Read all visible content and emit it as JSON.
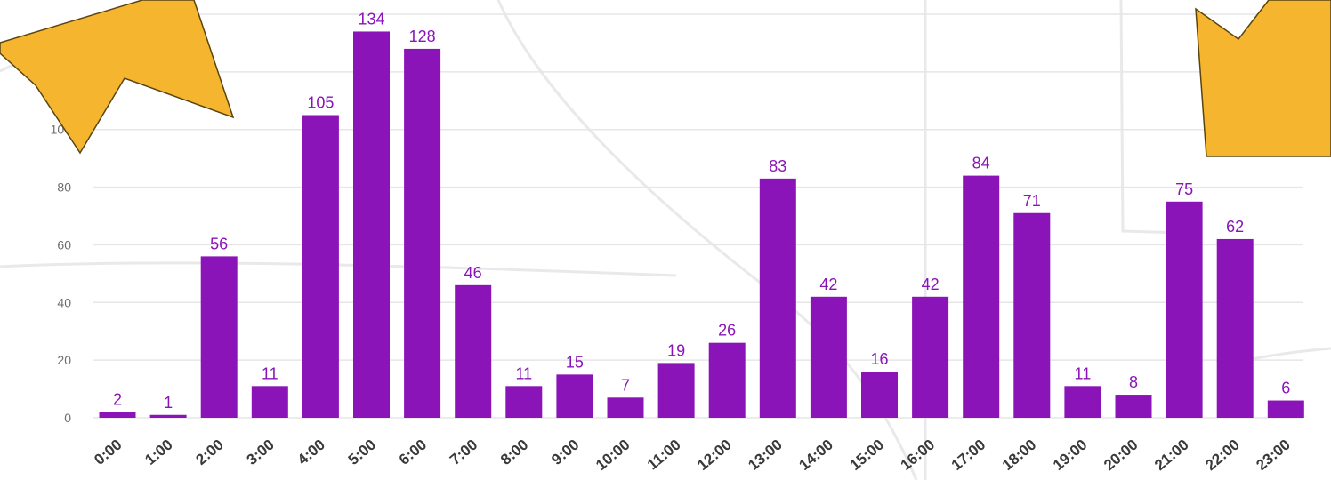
{
  "chart_data": {
    "type": "bar",
    "title": "",
    "xlabel": "",
    "ylabel": "",
    "categories": [
      "0:00",
      "1:00",
      "2:00",
      "3:00",
      "4:00",
      "5:00",
      "6:00",
      "7:00",
      "8:00",
      "9:00",
      "10:00",
      "11:00",
      "12:00",
      "13:00",
      "14:00",
      "15:00",
      "16:00",
      "17:00",
      "18:00",
      "19:00",
      "20:00",
      "21:00",
      "22:00",
      "23:00"
    ],
    "values": [
      2,
      1,
      56,
      11,
      105,
      134,
      128,
      46,
      11,
      15,
      7,
      19,
      26,
      83,
      42,
      16,
      42,
      84,
      71,
      11,
      8,
      75,
      62,
      6
    ],
    "y_ticks": [
      "0",
      "20",
      "40",
      "60",
      "80",
      "100",
      "120"
    ],
    "ylim": [
      0,
      140
    ],
    "grid": true,
    "legend": "none",
    "bar_color": "#8a14b7",
    "label_color": "#8a14b7"
  },
  "decorations": {
    "arrow_color": "#f5b52f",
    "background": "faint-map"
  }
}
